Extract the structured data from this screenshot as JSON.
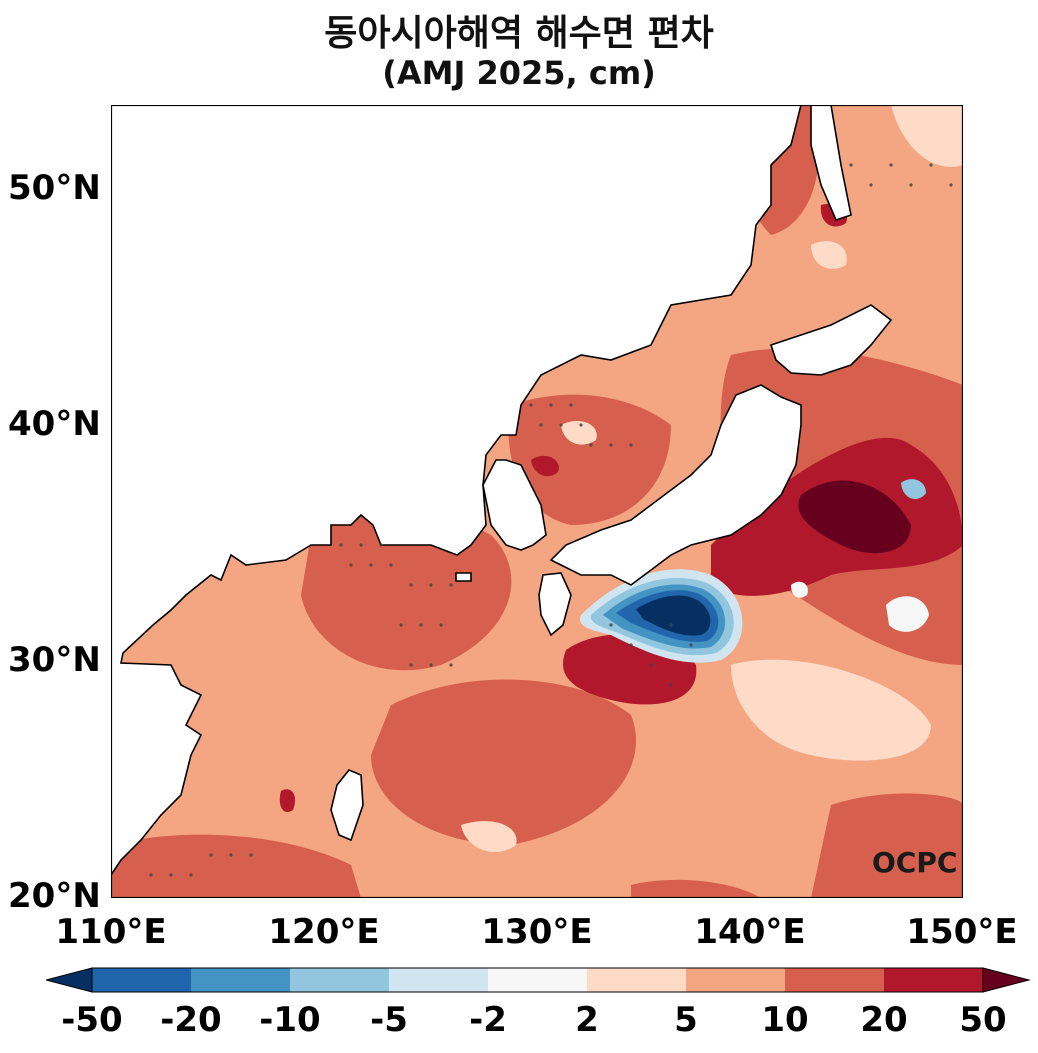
{
  "title": {
    "line1": "동아시아해역 해수면 편차",
    "line2": "(AMJ 2025, cm)"
  },
  "axes": {
    "lat_labels": [
      "50°N",
      "40°N",
      "30°N",
      "20°N"
    ],
    "lon_labels": [
      "110°E",
      "120°E",
      "130°E",
      "140°E",
      "150°E"
    ]
  },
  "colorbar": {
    "labels": [
      "-50",
      "-20",
      "-10",
      "-5",
      "-2",
      "2",
      "5",
      "10",
      "20",
      "50"
    ],
    "colors": [
      "#053061",
      "#2166ac",
      "#4393c3",
      "#92c5de",
      "#d1e5f0",
      "#f7f7f7",
      "#fddbc7",
      "#f4a582",
      "#d6604d",
      "#b2182b",
      "#67001f"
    ]
  },
  "watermark": "OCPC"
}
